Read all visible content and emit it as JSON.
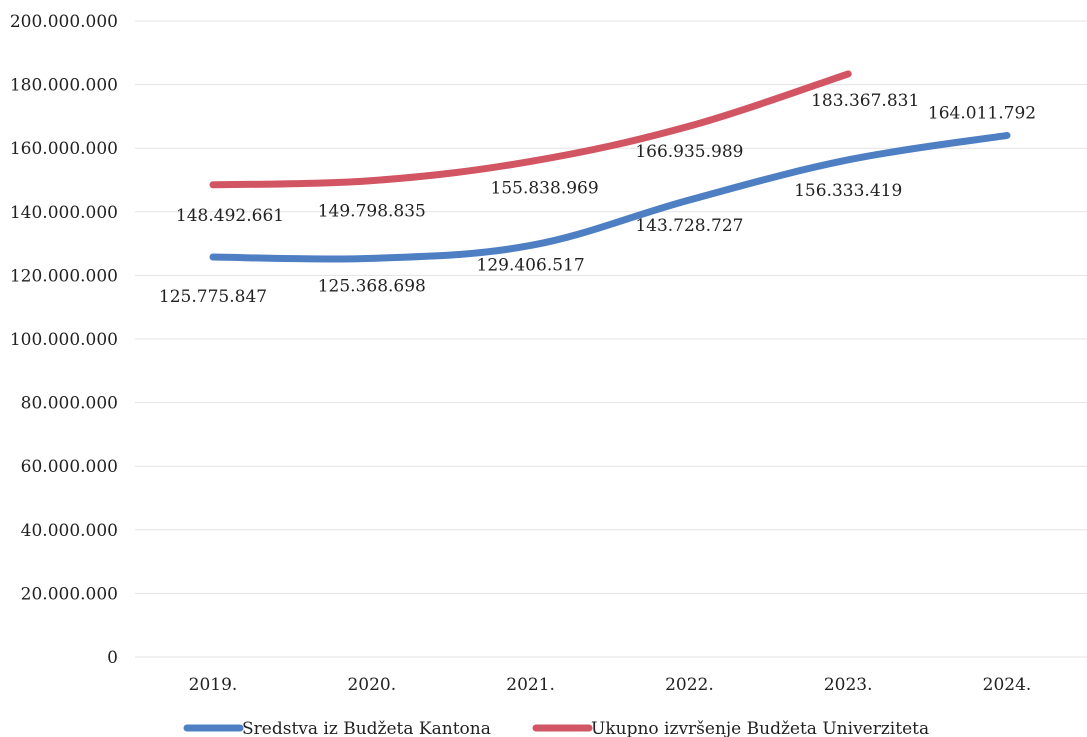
{
  "chart_data": {
    "type": "line",
    "title": "",
    "xlabel": "",
    "ylabel": "",
    "categories": [
      "2019.",
      "2020.",
      "2021.",
      "2022.",
      "2023.",
      "2024."
    ],
    "ylim": [
      0,
      200000000
    ],
    "yticks": [
      0,
      20000000,
      40000000,
      60000000,
      80000000,
      100000000,
      120000000,
      140000000,
      160000000,
      180000000,
      200000000
    ],
    "ytick_labels": [
      "0",
      "20.000.000",
      "40.000.000",
      "60.000.000",
      "80.000.000",
      "100.000.000",
      "120.000.000",
      "140.000.000",
      "160.000.000",
      "180.000.000",
      "200.000.000"
    ],
    "grid": true,
    "legend_position": "bottom",
    "series": [
      {
        "name": "Sredstva iz Budžeta Kantona",
        "color": "#4f7fc3",
        "values": [
          125775847,
          125368698,
          129406517,
          143728727,
          156333419,
          164011792
        ],
        "labels": [
          "125.775.847",
          "125.368.698",
          "129.406.517",
          "143.728.727",
          "156.333.419",
          "164.011.792"
        ]
      },
      {
        "name": "Ukupno izvršenje Budžeta Univerziteta",
        "color": "#d25563",
        "values": [
          148492661,
          149798835,
          155838969,
          166935989,
          183367831,
          null
        ],
        "labels": [
          "148.492.661",
          "149.798.835",
          "155.838.969",
          "166.935.989",
          "183.367.831",
          null
        ]
      }
    ]
  }
}
